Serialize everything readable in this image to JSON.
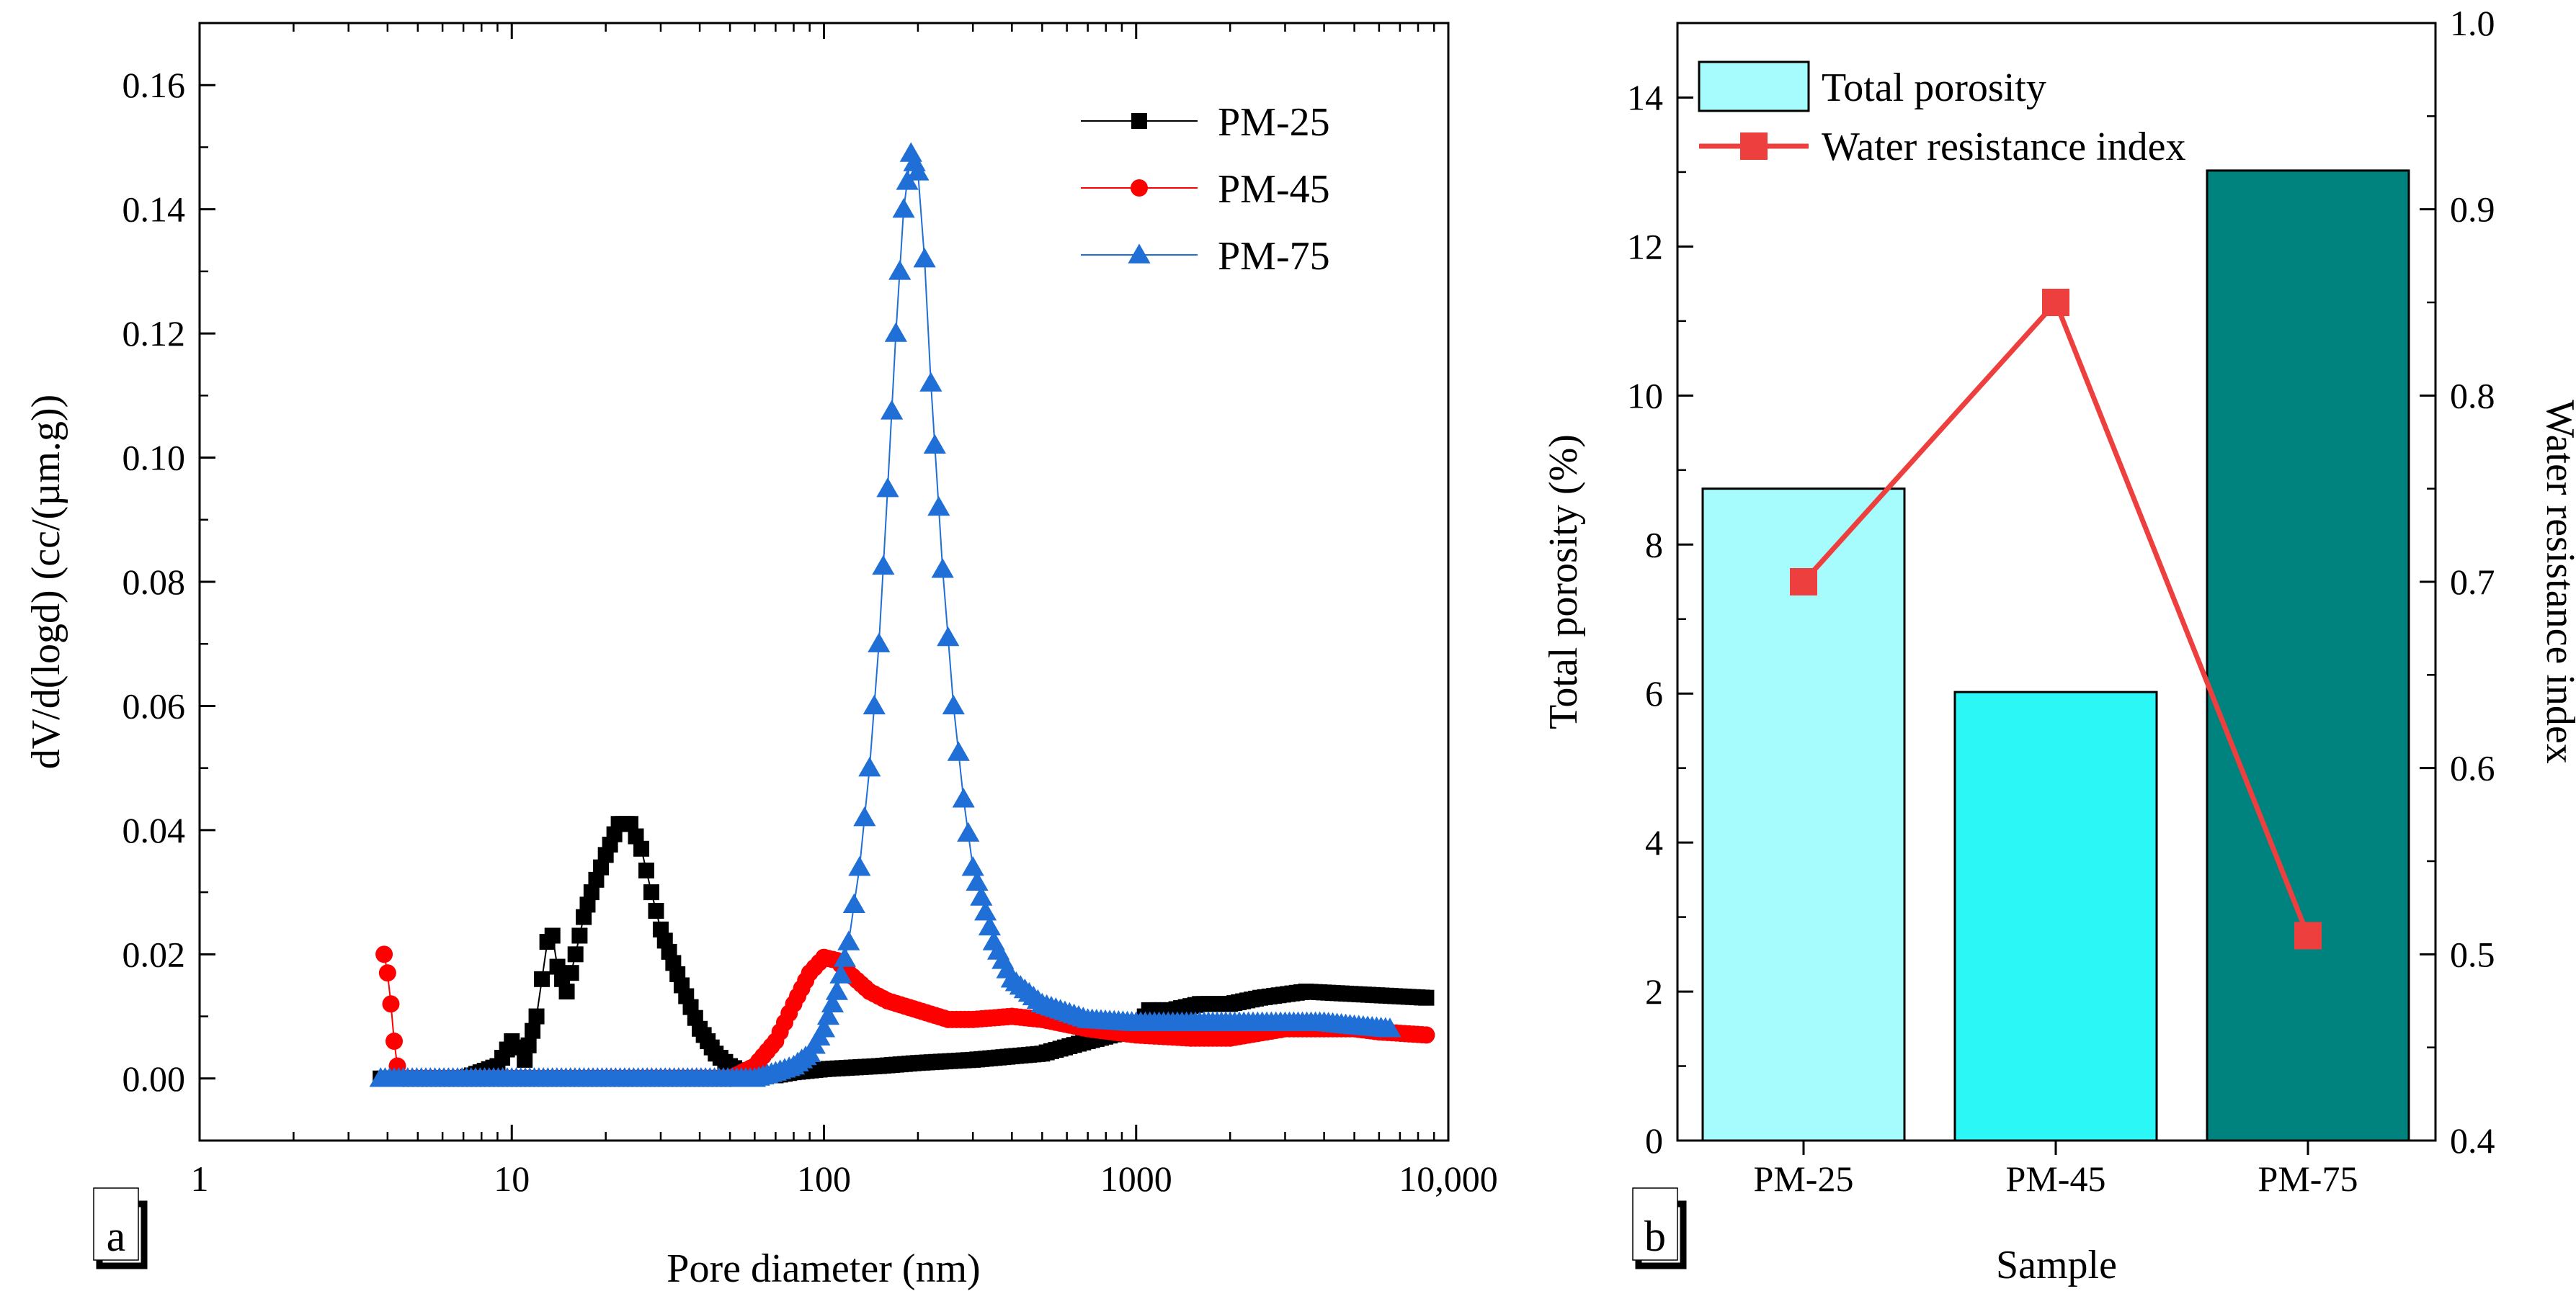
{
  "chart_data": [
    {
      "panel": "a",
      "type": "line",
      "title": "",
      "xlabel": "Pore diameter (nm)",
      "ylabel": "dV/d(logd) (cc/(µm.g))",
      "xscale": "log",
      "xlim": [
        1,
        10000
      ],
      "ylim": [
        -0.01,
        0.17
      ],
      "xticks": [
        1,
        10,
        100,
        1000,
        10000
      ],
      "xtick_labels": [
        "1",
        "10",
        "100",
        "1000",
        "10,000"
      ],
      "yticks": [
        0.0,
        0.02,
        0.04,
        0.06,
        0.08,
        0.1,
        0.12,
        0.14,
        0.16
      ],
      "ytick_labels": [
        "0.00",
        "0.02",
        "0.04",
        "0.06",
        "0.08",
        "0.10",
        "0.12",
        "0.14",
        "0.16"
      ],
      "legend_position": "top-right",
      "series": [
        {
          "name": "PM-25",
          "color": "#000000",
          "marker": "square",
          "x": [
            3.8,
            5,
            7,
            9,
            10,
            10.5,
            11,
            12,
            13,
            13.5,
            14,
            15,
            16,
            17,
            18,
            20,
            22,
            24,
            26,
            28,
            30,
            35,
            40,
            45,
            50,
            55,
            60,
            70,
            80,
            100,
            150,
            200,
            300,
            500,
            700,
            1000,
            1100,
            1300,
            1600,
            2000,
            2500,
            3500,
            8500
          ],
          "y": [
            0.0,
            0.0,
            0.0,
            0.002,
            0.006,
            0.005,
            0.003,
            0.01,
            0.022,
            0.023,
            0.018,
            0.014,
            0.02,
            0.026,
            0.03,
            0.036,
            0.041,
            0.041,
            0.037,
            0.03,
            0.024,
            0.015,
            0.008,
            0.004,
            0.002,
            0.001,
            0.0005,
            0.0005,
            0.001,
            0.0015,
            0.002,
            0.0025,
            0.003,
            0.004,
            0.006,
            0.008,
            0.011,
            0.011,
            0.012,
            0.012,
            0.013,
            0.014,
            0.013
          ]
        },
        {
          "name": "PM-45",
          "color": "#ff0000",
          "marker": "circle",
          "x": [
            3.9,
            4.0,
            4.1,
            4.2,
            4.3,
            4.5,
            5,
            10,
            20,
            50,
            60,
            70,
            80,
            90,
            100,
            110,
            120,
            140,
            160,
            200,
            250,
            300,
            400,
            500,
            700,
            1000,
            1500,
            2000,
            3000,
            4000,
            5000,
            6000,
            8500
          ],
          "y": [
            0.02,
            0.017,
            0.012,
            0.006,
            0.002,
            0.0,
            0.0,
            0.0,
            0.0,
            0.0,
            0.002,
            0.006,
            0.012,
            0.017,
            0.0195,
            0.019,
            0.017,
            0.014,
            0.0125,
            0.011,
            0.0095,
            0.0095,
            0.01,
            0.0095,
            0.008,
            0.007,
            0.0065,
            0.0065,
            0.008,
            0.008,
            0.008,
            0.0075,
            0.007
          ]
        },
        {
          "name": "PM-75",
          "color": "#1f6fd6",
          "marker": "triangle",
          "x": [
            3.8,
            10,
            30,
            60,
            70,
            80,
            90,
            100,
            110,
            120,
            130,
            140,
            150,
            160,
            170,
            180,
            190,
            200,
            210,
            220,
            240,
            260,
            280,
            300,
            350,
            400,
            500,
            700,
            1000,
            1500,
            2000,
            3000,
            4000,
            5000,
            6500
          ],
          "y": [
            0.0,
            0.0,
            0.0,
            0.0,
            0.001,
            0.002,
            0.004,
            0.008,
            0.014,
            0.022,
            0.034,
            0.05,
            0.07,
            0.095,
            0.12,
            0.14,
            0.149,
            0.146,
            0.132,
            0.112,
            0.082,
            0.06,
            0.045,
            0.034,
            0.022,
            0.016,
            0.012,
            0.0095,
            0.009,
            0.009,
            0.009,
            0.009,
            0.009,
            0.0085,
            0.008
          ]
        }
      ],
      "panel_label": "a"
    },
    {
      "panel": "b",
      "type": "bar",
      "title": "",
      "xlabel": "Sample",
      "ylabel": "Total porosity (%)",
      "y2label": "Water resistance index",
      "categories": [
        "PM-25",
        "PM-45",
        "PM-75"
      ],
      "ylim": [
        0,
        15
      ],
      "y2lim": [
        0.4,
        1.0
      ],
      "yticks": [
        0,
        2,
        4,
        6,
        8,
        10,
        12,
        14
      ],
      "ytick_labels": [
        "0",
        "2",
        "4",
        "6",
        "8",
        "10",
        "12",
        "14"
      ],
      "y2ticks": [
        0.4,
        0.5,
        0.6,
        0.7,
        0.8,
        0.9,
        1.0
      ],
      "y2tick_labels": [
        "0.4",
        "0.5",
        "0.6",
        "0.7",
        "0.8",
        "0.9",
        "1.0"
      ],
      "legend_position": "top-left",
      "series": [
        {
          "name": "Total porosity",
          "kind": "bar",
          "axis": "left",
          "values": [
            8.75,
            6.02,
            13.02
          ],
          "colors": [
            "#a6fcfc",
            "#2bf7f7",
            "#00827f"
          ]
        },
        {
          "name": "Water resistance index",
          "kind": "line",
          "axis": "right",
          "marker": "square",
          "color": "#ee3f3f",
          "values": [
            0.7,
            0.85,
            0.51
          ]
        }
      ],
      "panel_label": "b"
    }
  ]
}
